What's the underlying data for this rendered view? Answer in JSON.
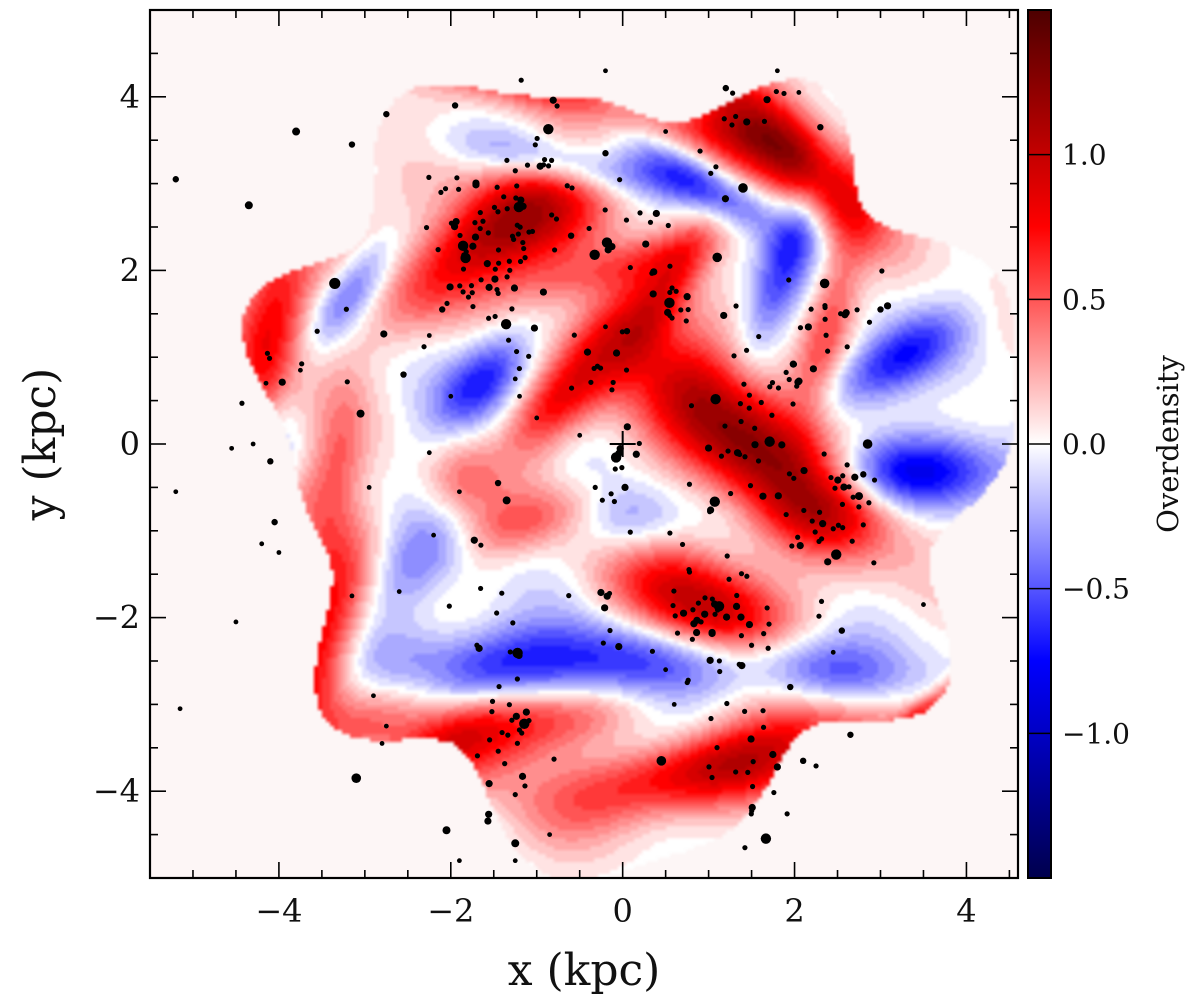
{
  "chart_data": {
    "type": "heatmap",
    "title": "",
    "xlabel": "x (kpc)",
    "ylabel": "y (kpc)",
    "xlim": [
      -5.5,
      4.6
    ],
    "ylim": [
      -5.0,
      5.0
    ],
    "x_ticks": [
      "−4",
      "−2",
      "0",
      "2",
      "4"
    ],
    "x_tick_values": [
      -4,
      -2,
      0,
      2,
      4
    ],
    "y_ticks": [
      "−4",
      "−2",
      "0",
      "2",
      "4"
    ],
    "y_tick_values": [
      -4,
      -2,
      0,
      2,
      4
    ],
    "colorbar": {
      "label": "Overdensity",
      "range": [
        -1.5,
        1.5
      ],
      "ticks": [
        "−1.0",
        "−0.5",
        "0.0",
        "0.5",
        "1.0"
      ],
      "tick_values": [
        -1.0,
        -0.5,
        0.0,
        0.5,
        1.0
      ],
      "colors": [
        "#00004d",
        "#0000ff",
        "#ffffff",
        "#ff0000",
        "#4d0000"
      ]
    },
    "grid": false,
    "center_marker": {
      "x": 0.0,
      "y": 0.0,
      "symbol": "+"
    },
    "overdensity_blobs": [
      {
        "x": -1.7,
        "y": 2.4,
        "sx": 0.45,
        "sy": 1.2,
        "angle": 25,
        "amp": 1.3
      },
      {
        "x": -1.15,
        "y": 4.3,
        "sx": 0.3,
        "sy": 0.9,
        "angle": -10,
        "amp": 0.9
      },
      {
        "x": -4.1,
        "y": 1.15,
        "sx": 0.3,
        "sy": 1.1,
        "angle": 82,
        "amp": 0.8
      },
      {
        "x": -3.4,
        "y": 4.0,
        "sx": 0.22,
        "sy": 0.45,
        "angle": 60,
        "amp": 0.55
      },
      {
        "x": -0.4,
        "y": 0.9,
        "sx": 0.28,
        "sy": 0.9,
        "angle": 55,
        "amp": 0.7
      },
      {
        "x": 0.15,
        "y": 2.1,
        "sx": 0.2,
        "sy": 0.9,
        "angle": 15,
        "amp": 0.35
      },
      {
        "x": 0.5,
        "y": 1.75,
        "sx": 0.2,
        "sy": 0.7,
        "angle": 60,
        "amp": 0.45
      },
      {
        "x": 1.45,
        "y": 3.7,
        "sx": 0.35,
        "sy": 1.2,
        "angle": -30,
        "amp": 1.05
      },
      {
        "x": 2.2,
        "y": 3.05,
        "sx": 0.25,
        "sy": 0.75,
        "angle": -45,
        "amp": 0.45
      },
      {
        "x": 1.4,
        "y": 0.1,
        "sx": 0.45,
        "sy": 1.2,
        "angle": -40,
        "amp": 1.3
      },
      {
        "x": 2.4,
        "y": 1.4,
        "sx": 0.2,
        "sy": 0.8,
        "angle": 75,
        "amp": 0.5
      },
      {
        "x": 2.45,
        "y": -0.65,
        "sx": 0.35,
        "sy": 0.55,
        "angle": 0,
        "amp": 0.55
      },
      {
        "x": 1.0,
        "y": -2.0,
        "sx": 0.45,
        "sy": 0.8,
        "angle": -30,
        "amp": 1.2
      },
      {
        "x": 1.3,
        "y": -3.6,
        "sx": 0.35,
        "sy": 1.4,
        "angle": 15,
        "amp": 1.15
      },
      {
        "x": 3.0,
        "y": -3.5,
        "sx": 0.09,
        "sy": 1.3,
        "angle": 40,
        "amp": 0.6
      },
      {
        "x": -1.5,
        "y": -3.3,
        "sx": 0.4,
        "sy": 1.5,
        "angle": 5,
        "amp": 1.2
      },
      {
        "x": -3.5,
        "y": -2.2,
        "sx": 0.3,
        "sy": 0.9,
        "angle": 70,
        "amp": 0.85
      },
      {
        "x": -3.7,
        "y": -0.95,
        "sx": 0.25,
        "sy": 0.75,
        "angle": 65,
        "amp": 0.4
      },
      {
        "x": -3.3,
        "y": -0.05,
        "sx": 0.22,
        "sy": 0.75,
        "angle": 85,
        "amp": 0.25
      },
      {
        "x": -1.85,
        "y": -0.45,
        "sx": 0.35,
        "sy": 0.3,
        "angle": 0,
        "amp": 0.35
      },
      {
        "x": -1.15,
        "y": -0.9,
        "sx": 0.25,
        "sy": 0.6,
        "angle": 20,
        "amp": 0.45
      },
      {
        "x": -0.95,
        "y": 0.35,
        "sx": 0.2,
        "sy": 0.4,
        "angle": 45,
        "amp": 0.25
      },
      {
        "x": -0.5,
        "y": -2.6,
        "sx": 0.35,
        "sy": 1.4,
        "angle": 0,
        "amp": -0.9
      },
      {
        "x": 0.25,
        "y": -3.4,
        "sx": 0.3,
        "sy": 1.2,
        "angle": 5,
        "amp": -0.7
      },
      {
        "x": 2.2,
        "y": -2.6,
        "sx": 0.3,
        "sy": 1.2,
        "angle": -10,
        "amp": -0.7
      },
      {
        "x": 2.6,
        "y": -4.1,
        "sx": 0.15,
        "sy": 0.8,
        "angle": 30,
        "amp": -0.5
      },
      {
        "x": 3.3,
        "y": -0.35,
        "sx": 0.3,
        "sy": 0.9,
        "angle": 5,
        "amp": -0.85
      },
      {
        "x": 3.15,
        "y": 0.95,
        "sx": 0.25,
        "sy": 0.6,
        "angle": 30,
        "amp": -0.7
      },
      {
        "x": 0.9,
        "y": 3.0,
        "sx": 0.2,
        "sy": 0.8,
        "angle": -30,
        "amp": -0.6
      },
      {
        "x": -0.5,
        "y": 3.2,
        "sx": 0.2,
        "sy": 0.9,
        "angle": -10,
        "amp": -0.6
      },
      {
        "x": -2.6,
        "y": 2.1,
        "sx": 0.3,
        "sy": 0.8,
        "angle": 40,
        "amp": -0.7
      },
      {
        "x": -1.6,
        "y": 0.75,
        "sx": 0.25,
        "sy": 0.5,
        "angle": 45,
        "amp": -0.7
      },
      {
        "x": -3.1,
        "y": 1.85,
        "sx": 0.2,
        "sy": 0.55,
        "angle": 55,
        "amp": -0.5
      },
      {
        "x": -2.6,
        "y": -3.4,
        "sx": 0.25,
        "sy": 0.9,
        "angle": 35,
        "amp": -0.45
      },
      {
        "x": -2.4,
        "y": -4.4,
        "sx": 0.2,
        "sy": 0.5,
        "angle": 0,
        "amp": -0.55
      },
      {
        "x": -2.3,
        "y": -1.3,
        "sx": 0.3,
        "sy": 0.6,
        "angle": 40,
        "amp": -0.4
      },
      {
        "x": 0.1,
        "y": -0.9,
        "sx": 0.3,
        "sy": 0.4,
        "angle": 0,
        "amp": -0.4
      },
      {
        "x": 1.9,
        "y": 2.1,
        "sx": 0.2,
        "sy": 0.8,
        "angle": 70,
        "amp": -0.5
      },
      {
        "x": -4.05,
        "y": 0.0,
        "sx": 0.2,
        "sy": 0.6,
        "angle": 80,
        "amp": -0.35
      },
      {
        "x": -3.9,
        "y": -1.6,
        "sx": 0.15,
        "sy": 0.6,
        "angle": 70,
        "amp": -0.4
      },
      {
        "x": -0.3,
        "y": 4.2,
        "sx": 0.15,
        "sy": 0.6,
        "angle": -20,
        "amp": -0.5
      },
      {
        "x": 0.6,
        "y": 4.0,
        "sx": 0.15,
        "sy": 0.6,
        "angle": -15,
        "amp": -0.4
      }
    ],
    "clusters": [
      {
        "x": -1.7,
        "y": 2.1,
        "n": 55,
        "sx": 0.25,
        "sy": 0.55,
        "angle": 25
      },
      {
        "x": -1.15,
        "y": 2.6,
        "n": 30,
        "sx": 0.25,
        "sy": 0.35,
        "angle": 30
      },
      {
        "x": -0.95,
        "y": 3.3,
        "n": 12,
        "sx": 0.15,
        "sy": 0.35,
        "angle": 0
      },
      {
        "x": 0.2,
        "y": 2.35,
        "n": 18,
        "sx": 0.35,
        "sy": 0.4,
        "angle": 0
      },
      {
        "x": 0.6,
        "y": 1.7,
        "n": 12,
        "sx": 0.2,
        "sy": 0.2,
        "angle": 0
      },
      {
        "x": -0.3,
        "y": 0.85,
        "n": 12,
        "sx": 0.2,
        "sy": 0.25,
        "angle": 50
      },
      {
        "x": 1.6,
        "y": 0.3,
        "n": 50,
        "sx": 0.3,
        "sy": 0.7,
        "angle": -40
      },
      {
        "x": 2.4,
        "y": -0.8,
        "n": 40,
        "sx": 0.3,
        "sy": 0.45,
        "angle": 0
      },
      {
        "x": 2.2,
        "y": 1.35,
        "n": 15,
        "sx": 0.45,
        "sy": 0.2,
        "angle": 20
      },
      {
        "x": 0.9,
        "y": -2.1,
        "n": 45,
        "sx": 0.35,
        "sy": 0.45,
        "angle": -30
      },
      {
        "x": 1.4,
        "y": -3.7,
        "n": 25,
        "sx": 0.25,
        "sy": 0.6,
        "angle": 15
      },
      {
        "x": -1.45,
        "y": -3.0,
        "n": 40,
        "sx": 0.25,
        "sy": 0.9,
        "angle": 5
      },
      {
        "x": 0.0,
        "y": -0.35,
        "n": 14,
        "sx": 0.15,
        "sy": 0.3,
        "angle": 0
      },
      {
        "x": -0.2,
        "y": -2.0,
        "n": 8,
        "sx": 0.15,
        "sy": 0.25,
        "angle": 0
      },
      {
        "x": 1.3,
        "y": 3.6,
        "n": 12,
        "sx": 0.3,
        "sy": 0.4,
        "angle": -30
      },
      {
        "x": -3.6,
        "y": 1.0,
        "n": 10,
        "sx": 0.8,
        "sy": 0.2,
        "angle": 10
      }
    ],
    "isolated_points": [
      {
        "x": -5.2,
        "y": 3.05,
        "s": 2
      },
      {
        "x": -5.2,
        "y": -0.55,
        "s": 1.5
      },
      {
        "x": -5.15,
        "y": -3.05,
        "s": 1.5
      },
      {
        "x": -4.35,
        "y": 2.75,
        "s": 2.5
      },
      {
        "x": -3.8,
        "y": 3.6,
        "s": 2.5
      },
      {
        "x": -3.15,
        "y": 3.45,
        "s": 2
      },
      {
        "x": -2.75,
        "y": 3.8,
        "s": 2
      },
      {
        "x": -3.35,
        "y": 1.85,
        "s": 3.5
      },
      {
        "x": -3.05,
        "y": 0.35,
        "s": 2.5
      },
      {
        "x": -4.55,
        "y": -0.05,
        "s": 1.5
      },
      {
        "x": -4.1,
        "y": -0.2,
        "s": 2
      },
      {
        "x": -4.05,
        "y": -0.9,
        "s": 2
      },
      {
        "x": -4.2,
        "y": -1.15,
        "s": 1.5
      },
      {
        "x": -4.5,
        "y": -2.05,
        "s": 1.5
      },
      {
        "x": -3.15,
        "y": -1.75,
        "s": 1.5
      },
      {
        "x": -3.1,
        "y": -3.85,
        "s": 3
      },
      {
        "x": -2.8,
        "y": -3.45,
        "s": 1.5
      },
      {
        "x": -2.75,
        "y": -3.25,
        "s": 1.5
      },
      {
        "x": -1.95,
        "y": 3.9,
        "s": 2
      },
      {
        "x": -2.1,
        "y": 1.55,
        "s": 2
      },
      {
        "x": -2.25,
        "y": 1.25,
        "s": 1.5
      },
      {
        "x": -2.05,
        "y": -4.45,
        "s": 2.5
      },
      {
        "x": -1.9,
        "y": -4.8,
        "s": 1.5
      },
      {
        "x": -1.25,
        "y": -4.8,
        "s": 1.5
      },
      {
        "x": -1.25,
        "y": -4.6,
        "s": 2.5
      },
      {
        "x": -0.85,
        "y": -4.5,
        "s": 1.5
      },
      {
        "x": 0.45,
        "y": -3.65,
        "s": 3
      },
      {
        "x": 0.5,
        "y": -2.6,
        "s": 1.5
      },
      {
        "x": 0.6,
        "y": -3.0,
        "s": 1.5
      },
      {
        "x": 3.5,
        "y": -1.85,
        "s": 1.5
      },
      {
        "x": 3.0,
        "y": 1.55,
        "s": 2
      },
      {
        "x": 2.35,
        "y": 1.85,
        "s": 3
      },
      {
        "x": 2.3,
        "y": 3.65,
        "s": 2
      },
      {
        "x": 2.05,
        "y": 4.05,
        "s": 1.5
      },
      {
        "x": 1.8,
        "y": 4.3,
        "s": 1.5
      },
      {
        "x": 1.2,
        "y": 4.1,
        "s": 2
      },
      {
        "x": 1.4,
        "y": 2.95,
        "s": 3
      },
      {
        "x": 1.1,
        "y": 2.15,
        "s": 3
      },
      {
        "x": 0.5,
        "y": 3.6,
        "s": 1.5
      },
      {
        "x": -0.2,
        "y": 3.35,
        "s": 2
      },
      {
        "x": -0.6,
        "y": 2.4,
        "s": 2
      },
      {
        "x": -0.5,
        "y": 0.1,
        "s": 1.5
      },
      {
        "x": -1.0,
        "y": 0.3,
        "s": 1.5
      },
      {
        "x": -1.25,
        "y": 0.75,
        "s": 1.5
      },
      {
        "x": -1.2,
        "y": 0.55,
        "s": 1.5
      },
      {
        "x": -2.0,
        "y": 0.55,
        "s": 1.5
      },
      {
        "x": -1.45,
        "y": -0.45,
        "s": 2
      },
      {
        "x": -1.35,
        "y": -0.65,
        "s": 2.5
      },
      {
        "x": -1.9,
        "y": -0.55,
        "s": 1.5
      },
      {
        "x": -2.25,
        "y": -0.1,
        "s": 1.5
      },
      {
        "x": -2.2,
        "y": -1.05,
        "s": 1.5
      },
      {
        "x": 1.95,
        "y": -2.8,
        "s": 2
      },
      {
        "x": 2.1,
        "y": -3.65,
        "s": 2
      },
      {
        "x": 2.65,
        "y": -3.35,
        "s": 2
      },
      {
        "x": 2.75,
        "y": -0.6,
        "s": 2.5
      },
      {
        "x": 2.85,
        "y": 0.0,
        "s": 3
      },
      {
        "x": 2.8,
        "y": -0.35,
        "s": 2
      },
      {
        "x": 2.55,
        "y": -2.15,
        "s": 2
      },
      {
        "x": 2.45,
        "y": -2.4,
        "s": 1.5
      },
      {
        "x": -0.2,
        "y": 4.3,
        "s": 1.5
      },
      {
        "x": -0.2,
        "y": 1.35,
        "s": 1.5
      },
      {
        "x": 0.05,
        "y": 1.3,
        "s": 2
      },
      {
        "x": -2.55,
        "y": 0.8,
        "s": 2
      },
      {
        "x": -4.3,
        "y": 0.0,
        "s": 1.5
      },
      {
        "x": -4.15,
        "y": 0.7,
        "s": 1.5
      },
      {
        "x": -4.0,
        "y": -1.25,
        "s": 1.5
      },
      {
        "x": -3.75,
        "y": 0.85,
        "s": 1.5
      },
      {
        "x": -2.95,
        "y": -0.5,
        "s": 1.5
      },
      {
        "x": -2.6,
        "y": -1.7,
        "s": 1.5
      },
      {
        "x": -2.9,
        "y": -2.9,
        "s": 1.5
      }
    ]
  }
}
